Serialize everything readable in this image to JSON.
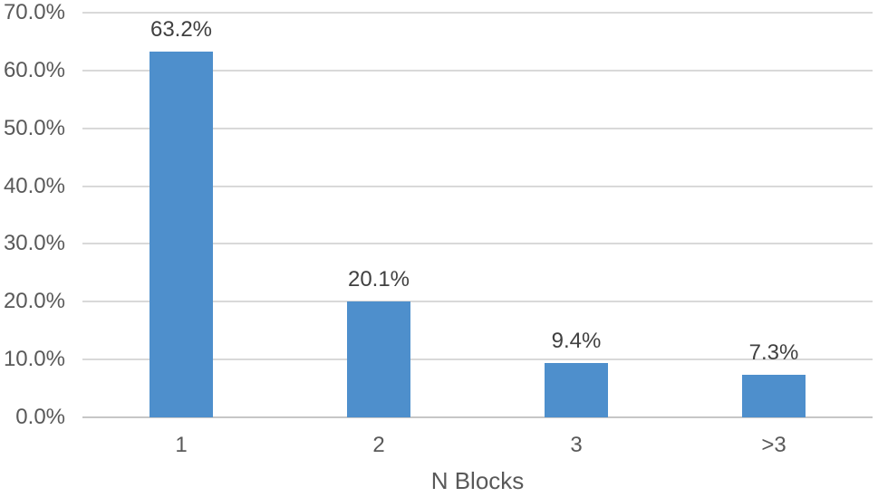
{
  "chart_data": {
    "type": "bar",
    "title": "",
    "categories": [
      "1",
      "2",
      "3",
      ">3"
    ],
    "values": [
      63.2,
      20.1,
      9.4,
      7.3
    ],
    "value_labels": [
      "63.2%",
      "20.1%",
      "9.4%",
      "7.3%"
    ],
    "xlabel": "N Blocks",
    "ylabel": "",
    "ylim": [
      0,
      70
    ],
    "ytick_step": 10,
    "ytick_labels": [
      "0.0%",
      "10.0%",
      "20.0%",
      "30.0%",
      "40.0%",
      "50.0%",
      "60.0%",
      "70.0%"
    ],
    "grid": true,
    "legend": false,
    "colors": {
      "bar_fill": "#4E8FCC",
      "gridline": "#D9D9D9",
      "axis_line": "#C6C6C6",
      "tick_label": "#595959",
      "data_label": "#404040",
      "axis_title": "#595959",
      "background": "#FFFFFF"
    }
  }
}
